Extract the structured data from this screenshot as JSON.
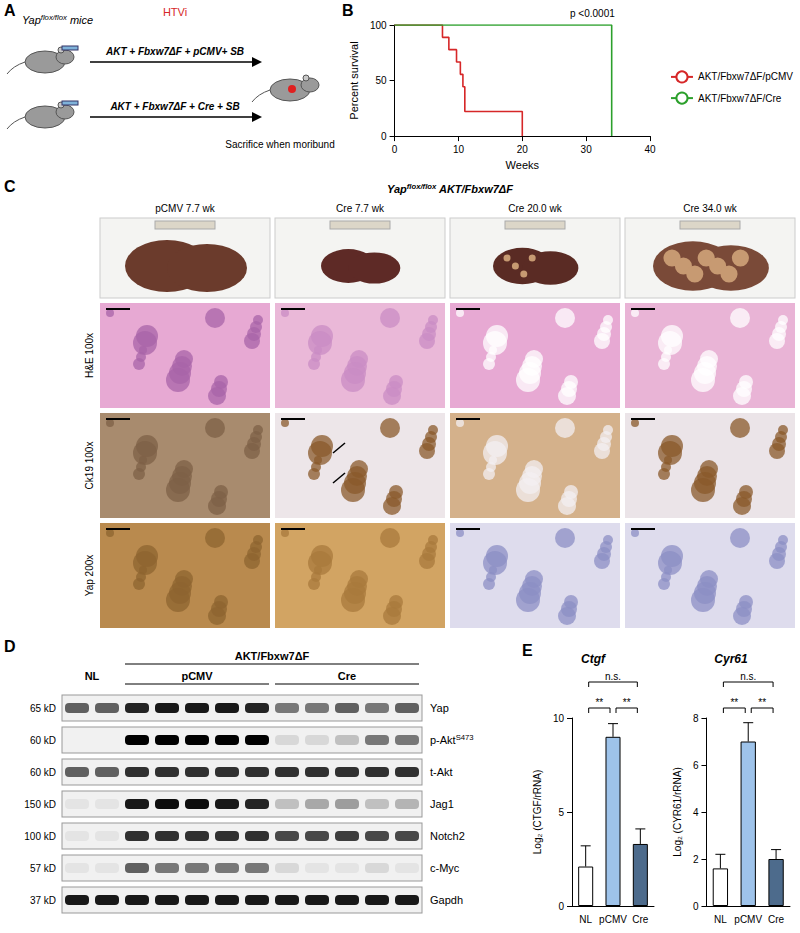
{
  "panels": {
    "A": {
      "letter": "A",
      "mouse": [
        {
          "t": "Yap"
        },
        {
          "t": "flox/flox",
          "sup": true
        },
        {
          "t": " mice"
        }
      ],
      "method": "HTVi",
      "rows": [
        "AKT + Fbxw7ΔF + pCMV+ SB",
        "AKT + Fbxw7ΔF + Cre + SB"
      ],
      "outcome": "Sacrifice when moribund"
    },
    "B": {
      "letter": "B"
    },
    "C": {
      "letter": "C",
      "title": [
        {
          "t": "Yap"
        },
        {
          "t": "flox/flox",
          "sup": true
        },
        {
          "t": " AKT/Fbxw7ΔF"
        }
      ],
      "columns": [
        "pCMV 7.7 wk",
        "Cre 7.7 wk",
        "Cre 20.0 wk",
        "Cre 34.0 wk"
      ],
      "rows": [
        "H&E 100x",
        "Ck19 100x",
        "Yap 200x"
      ]
    },
    "D": {
      "letter": "D",
      "span_label": "AKT/Fbxw7ΔF",
      "lane_groups": [
        {
          "label": "NL",
          "lanes": 2
        },
        {
          "label": "pCMV",
          "lanes": 5
        },
        {
          "label": "Cre",
          "lanes": 5
        }
      ],
      "rows": [
        {
          "kd": "65 kD",
          "protein": [
            {
              "t": "Yap"
            }
          ],
          "intensity": [
            0.6,
            0.6,
            0.85,
            0.9,
            0.9,
            0.9,
            0.85,
            0.5,
            0.5,
            0.6,
            0.5,
            0.6
          ]
        },
        {
          "kd": "60 kD",
          "protein": [
            {
              "t": "p-Akt"
            },
            {
              "t": "S473",
              "sup": true
            }
          ],
          "intensity": [
            0.0,
            0.0,
            1.0,
            1.0,
            1.0,
            1.0,
            1.0,
            0.1,
            0.1,
            0.2,
            0.5,
            0.5
          ]
        },
        {
          "kd": "60 kD",
          "protein": [
            {
              "t": "t-Akt"
            }
          ],
          "intensity": [
            0.6,
            0.6,
            0.8,
            0.8,
            0.8,
            0.8,
            0.8,
            0.8,
            0.8,
            0.8,
            0.8,
            0.8
          ]
        },
        {
          "kd": "150 kD",
          "protein": [
            {
              "t": "Jag1"
            }
          ],
          "intensity": [
            0.05,
            0.05,
            0.9,
            0.95,
            0.95,
            0.9,
            0.85,
            0.2,
            0.3,
            0.35,
            0.2,
            0.25
          ]
        },
        {
          "kd": "100 kD",
          "protein": [
            {
              "t": "Notch2"
            }
          ],
          "intensity": [
            0.05,
            0.05,
            0.8,
            0.8,
            0.8,
            0.8,
            0.8,
            0.7,
            0.7,
            0.75,
            0.7,
            0.7
          ]
        },
        {
          "kd": "57 kD",
          "protein": [
            {
              "t": "c-Myc"
            }
          ],
          "intensity": [
            0.05,
            0.05,
            0.6,
            0.5,
            0.5,
            0.5,
            0.5,
            0.1,
            0.05,
            0.05,
            0.1,
            0.05
          ]
        },
        {
          "kd": "37 kD",
          "protein": [
            {
              "t": "Gapdh"
            }
          ],
          "intensity": [
            0.9,
            0.9,
            0.9,
            0.9,
            0.9,
            0.9,
            0.9,
            0.9,
            0.9,
            0.9,
            0.9,
            0.9
          ]
        }
      ]
    },
    "E": {
      "letter": "E"
    }
  },
  "chart_data": [
    {
      "type": "line",
      "x_label": "Weeks",
      "y_label": "Percent survival",
      "xlim": [
        0,
        40
      ],
      "xticks": [
        0,
        10,
        20,
        30,
        40
      ],
      "ylim": [
        0,
        100
      ],
      "yticks": [
        0,
        50,
        100
      ],
      "grid": false,
      "legend": "right",
      "line_style": "step",
      "annotations": [
        "p <0.0001"
      ],
      "series": [
        {
          "name": "AKT/Fbxw7ΔF/pCMV",
          "color": "#d62728",
          "x": [
            0,
            7.5,
            8.5,
            9.7,
            10.3,
            10.7,
            11,
            20
          ],
          "values": [
            100,
            88.9,
            77.8,
            66.7,
            55.6,
            44.4,
            22.2,
            0
          ]
        },
        {
          "name": "AKT/Fbxw7ΔF/Cre",
          "color": "#2ca02c",
          "x": [
            0,
            34
          ],
          "values": [
            100,
            0
          ]
        }
      ]
    },
    {
      "type": "bar",
      "title": "Ctgf",
      "y_label": "Log₂ (CTGF/rRNA)",
      "categories": [
        "NL",
        "pCMV",
        "Cre"
      ],
      "values": [
        2.1,
        9.0,
        3.3
      ],
      "errors": [
        1.1,
        0.7,
        0.8
      ],
      "colors": [
        "#ffffff",
        "#9ec3ea",
        "#4d6b8c"
      ],
      "ylim": [
        0,
        10
      ],
      "yticks": [
        0,
        5,
        10
      ],
      "grid": false,
      "significance": [
        {
          "from": "NL",
          "to": "pCMV",
          "label": "**"
        },
        {
          "from": "pCMV",
          "to": "Cre",
          "label": "**"
        },
        {
          "from": "NL",
          "to": "Cre",
          "label": "n.s."
        }
      ]
    },
    {
      "type": "bar",
      "title": "Cyr61",
      "y_label": "Log₂ (CYR61/rRNA)",
      "categories": [
        "NL",
        "pCMV",
        "Cre"
      ],
      "values": [
        1.6,
        7.0,
        2.0
      ],
      "errors": [
        0.6,
        0.8,
        0.4
      ],
      "colors": [
        "#ffffff",
        "#9ec3ea",
        "#4d6b8c"
      ],
      "ylim": [
        0,
        8
      ],
      "yticks": [
        0,
        2,
        4,
        6,
        8
      ],
      "grid": false,
      "significance": [
        {
          "from": "NL",
          "to": "pCMV",
          "label": "**"
        },
        {
          "from": "pCMV",
          "to": "Cre",
          "label": "**"
        },
        {
          "from": "NL",
          "to": "Cre",
          "label": "n.s."
        }
      ]
    }
  ]
}
